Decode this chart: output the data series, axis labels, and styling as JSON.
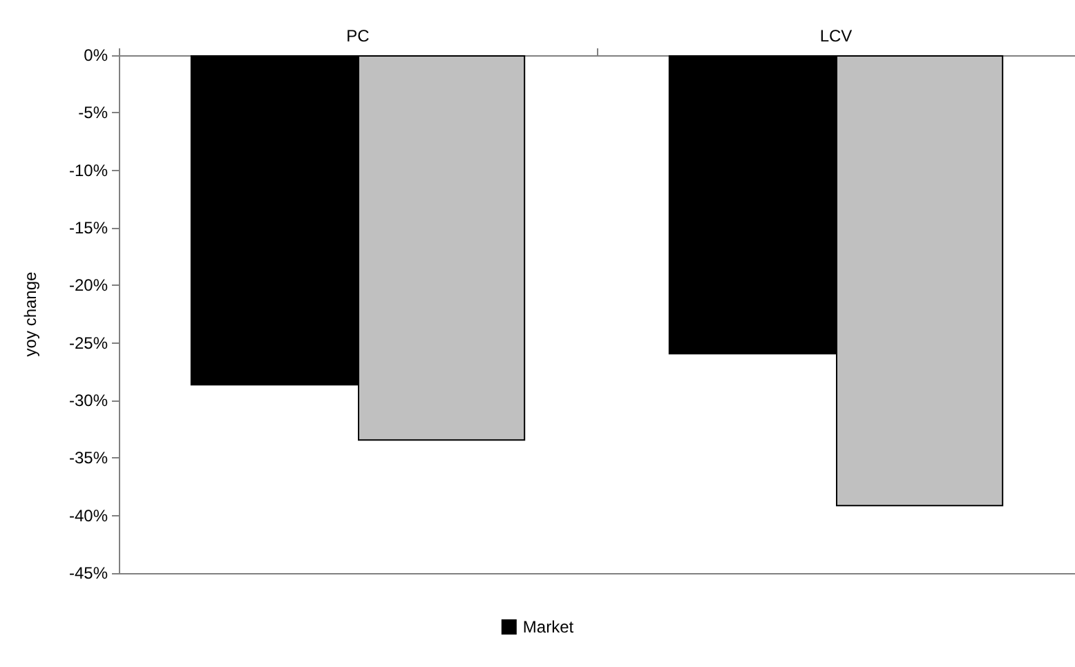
{
  "chart_data": {
    "type": "bar",
    "ylabel": "yoy change",
    "categories": [
      "PC",
      "LCV"
    ],
    "series": [
      {
        "name": "Market",
        "color": "#000000",
        "values": [
          -28.7,
          -26
        ]
      },
      {
        "color": "#c0c0c0",
        "values": [
          -33.5,
          -39.2
        ]
      }
    ],
    "ylim": [
      -45,
      0
    ],
    "yticks": [
      {
        "value": 0,
        "label": "0%"
      },
      {
        "value": -5,
        "label": "-5%"
      },
      {
        "value": -10,
        "label": "-10%"
      },
      {
        "value": -15,
        "label": "-15%"
      },
      {
        "value": -20,
        "label": "-20%"
      },
      {
        "value": -25,
        "label": "-25%"
      },
      {
        "value": -30,
        "label": "-30%"
      },
      {
        "value": -35,
        "label": "-35%"
      },
      {
        "value": -40,
        "label": "-40%"
      },
      {
        "value": -45,
        "label": "-45%"
      }
    ],
    "grid": false,
    "legend": "bottom"
  }
}
